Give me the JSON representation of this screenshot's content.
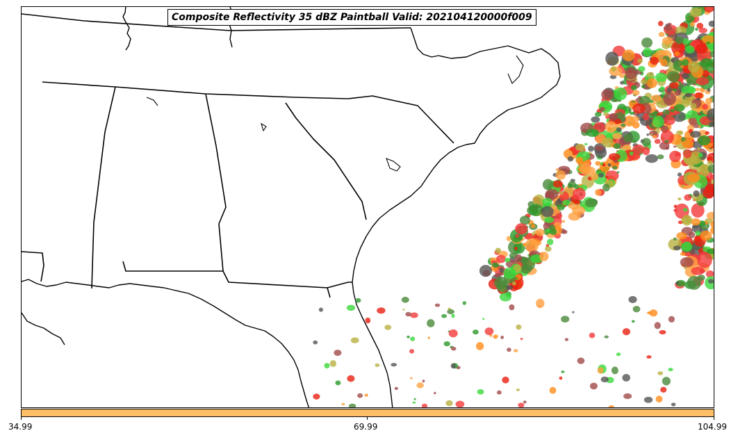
{
  "title": "Composite Reflectivity 35 dBZ Paintball Valid: 202104120000f009",
  "colorbar": {
    "color": "#ffbf66",
    "ticks": [
      "34.99",
      "69.99",
      "104.99"
    ]
  },
  "palette": [
    "#f23a3a",
    "#ff8c1a",
    "#3cd83c",
    "#a04a4a",
    "#4a8a3a",
    "#b8b040",
    "#555555",
    "#ffa040",
    "#e82010",
    "#2a9a2a"
  ]
}
